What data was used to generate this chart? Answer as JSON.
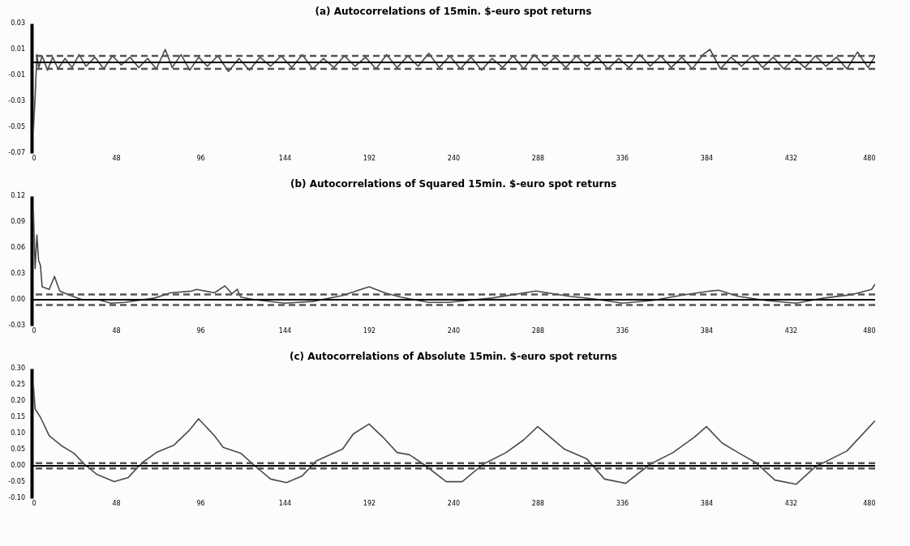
{
  "chart_data": [
    {
      "type": "line",
      "title": "(a) Autocorrelations of 15min. $-euro spot returns",
      "x": [
        1,
        2,
        3,
        4,
        6,
        9,
        12,
        15,
        19,
        23,
        27,
        31,
        36,
        41,
        46,
        51,
        56,
        61,
        66,
        71,
        76,
        80,
        85,
        90,
        95,
        100,
        106,
        112,
        118,
        124,
        130,
        136,
        142,
        148,
        154,
        160,
        166,
        172,
        178,
        184,
        190,
        196,
        202,
        208,
        214,
        220,
        226,
        232,
        238,
        244,
        250,
        256,
        262,
        268,
        274,
        280,
        286,
        292,
        298,
        304,
        310,
        316,
        322,
        328,
        334,
        340,
        346,
        352,
        358,
        364,
        370,
        376,
        382,
        386,
        392,
        398,
        404,
        410,
        416,
        422,
        428,
        434,
        440,
        446,
        452,
        458,
        464,
        470,
        476,
        480
      ],
      "series": [
        {
          "color": "#4a4a4a",
          "values": [
            -0.053,
            -0.026,
            0.006,
            -0.004,
            0.005,
            -0.006,
            0.004,
            -0.005,
            0.003,
            -0.004,
            0.006,
            -0.003,
            0.004,
            -0.005,
            0.005,
            -0.002,
            0.004,
            -0.004,
            0.003,
            -0.005,
            0.01,
            -0.004,
            0.006,
            -0.006,
            0.004,
            -0.003,
            0.005,
            -0.007,
            0.003,
            -0.006,
            0.004,
            -0.003,
            0.005,
            -0.004,
            0.006,
            -0.005,
            0.003,
            -0.004,
            0.005,
            -0.003,
            0.004,
            -0.005,
            0.006,
            -0.004,
            0.005,
            -0.003,
            0.007,
            -0.004,
            0.005,
            -0.005,
            0.004,
            -0.006,
            0.003,
            -0.004,
            0.005,
            -0.005,
            0.006,
            -0.003,
            0.004,
            -0.004,
            0.005,
            -0.003,
            0.004,
            -0.005,
            0.003,
            -0.004,
            0.006,
            -0.003,
            0.005,
            -0.004,
            0.004,
            -0.005,
            0.006,
            0.01,
            -0.005,
            0.004,
            -0.003,
            0.005,
            -0.004,
            0.004,
            -0.005,
            0.003,
            -0.004,
            0.005,
            -0.003,
            0.004,
            -0.005,
            0.008,
            -0.004,
            0.005
          ]
        }
      ],
      "xlim": [
        0,
        480
      ],
      "xticks": [
        0,
        48,
        96,
        144,
        192,
        240,
        288,
        336,
        384,
        432,
        480
      ],
      "ylim": [
        -0.07,
        0.03
      ],
      "yticks": [
        {
          "value": 0.03,
          "label": "0.03"
        },
        {
          "value": 0.01,
          "label": "0.01"
        },
        {
          "value": -0.01,
          "label": "-0.01"
        },
        {
          "value": -0.03,
          "label": "-0.03"
        },
        {
          "value": -0.05,
          "label": "-0.05"
        },
        {
          "value": -0.07,
          "label": "-0.07"
        }
      ],
      "ref_lines": [
        {
          "axis": "y",
          "value": 0,
          "color": "#000000",
          "line_style": "solid"
        },
        {
          "axis": "y",
          "value": 0.005,
          "color": "#555555",
          "line_style": "dashed"
        },
        {
          "axis": "y",
          "value": -0.005,
          "color": "#555555",
          "line_style": "dashed"
        }
      ]
    },
    {
      "type": "line",
      "title": "(b) Autocorrelations of Squared 15min. $-euro spot returns",
      "x": [
        1,
        2,
        3,
        4,
        5,
        6,
        10,
        13,
        16,
        22,
        29,
        38,
        45,
        53,
        70,
        79,
        91,
        94,
        104,
        110,
        114,
        117,
        119,
        127,
        144,
        160,
        177,
        192,
        201,
        210,
        226,
        237,
        262,
        287,
        306,
        320,
        336,
        353,
        369,
        386,
        391,
        402,
        418,
        435,
        451,
        467,
        478,
        480
      ],
      "series": [
        {
          "color": "#4a4a4a",
          "values": [
            0.103,
            0.036,
            0.075,
            0.045,
            0.04,
            0.015,
            0.012,
            0.027,
            0.01,
            0.005,
            0,
            0,
            -0.004,
            -0.003,
            0.002,
            0.008,
            0.01,
            0.012,
            0.008,
            0.016,
            0.007,
            0.012,
            0.003,
            0,
            -0.004,
            -0.002,
            0.005,
            0.015,
            0.008,
            0.003,
            -0.003,
            -0.003,
            0.002,
            0.01,
            0.004,
            0.001,
            -0.004,
            -0.001,
            0.005,
            0.01,
            0.011,
            0.004,
            -0.001,
            -0.004,
            0.002,
            0.006,
            0.012,
            0.018
          ]
        }
      ],
      "xlim": [
        0,
        480
      ],
      "xticks": [
        0,
        48,
        96,
        144,
        192,
        240,
        288,
        336,
        384,
        432,
        480
      ],
      "ylim": [
        -0.03,
        0.12
      ],
      "yticks": [
        {
          "value": 0.12,
          "label": "0.12"
        },
        {
          "value": 0.09,
          "label": "0.09"
        },
        {
          "value": 0.06,
          "label": "0.06"
        },
        {
          "value": 0.03,
          "label": "0.03"
        },
        {
          "value": 0,
          "label": "0.00"
        },
        {
          "value": -0.03,
          "label": "-0.03"
        }
      ],
      "ref_lines": [
        {
          "axis": "y",
          "value": 0,
          "color": "#000000",
          "line_style": "solid"
        },
        {
          "axis": "y",
          "value": 0.006,
          "color": "#555555",
          "line_style": "dashed"
        },
        {
          "axis": "y",
          "value": -0.006,
          "color": "#555555",
          "line_style": "dashed"
        }
      ]
    },
    {
      "type": "line",
      "title": "(c) Autocorrelations of Absolute 15min. $-euro spot returns",
      "x": [
        1,
        2,
        5,
        10,
        17,
        24,
        30,
        37,
        47,
        55,
        63,
        71,
        81,
        90,
        95,
        104,
        109,
        119,
        127,
        136,
        145,
        154,
        162,
        177,
        183,
        192,
        200,
        208,
        215,
        223,
        236,
        245,
        257,
        270,
        280,
        288,
        303,
        316,
        326,
        338,
        352,
        365,
        377,
        384,
        393,
        402,
        412,
        423,
        435,
        446,
        464,
        480
      ],
      "series": [
        {
          "color": "#4a4a4a",
          "values": [
            0.25,
            0.175,
            0.15,
            0.093,
            0.062,
            0.039,
            0.005,
            -0.026,
            -0.049,
            -0.036,
            0.01,
            0.041,
            0.064,
            0.111,
            0.145,
            0.093,
            0.057,
            0.039,
            0,
            -0.041,
            -0.052,
            -0.031,
            0.015,
            0.052,
            0.098,
            0.129,
            0.088,
            0.041,
            0.034,
            0.005,
            -0.049,
            -0.049,
            0.005,
            0.041,
            0.08,
            0.121,
            0.052,
            0.021,
            -0.041,
            -0.054,
            0.005,
            0.041,
            0.088,
            0.121,
            0.07,
            0.041,
            0.01,
            -0.044,
            -0.057,
            -0.003,
            0.046,
            0.139
          ]
        }
      ],
      "xlim": [
        0,
        480
      ],
      "xticks": [
        0,
        48,
        96,
        144,
        192,
        240,
        288,
        336,
        384,
        432,
        480
      ],
      "ylim": [
        -0.1,
        0.3
      ],
      "yticks": [
        {
          "value": 0.3,
          "label": "0.30"
        },
        {
          "value": 0.25,
          "label": "0.25"
        },
        {
          "value": 0.2,
          "label": "0.20"
        },
        {
          "value": 0.15,
          "label": "0.15"
        },
        {
          "value": 0.1,
          "label": "0.10"
        },
        {
          "value": 0.05,
          "label": "0.05"
        },
        {
          "value": 0,
          "label": "0.00"
        },
        {
          "value": -0.05,
          "label": "-0.05"
        },
        {
          "value": -0.1,
          "label": "-0.10"
        }
      ],
      "ref_lines": [
        {
          "axis": "y",
          "value": 0,
          "color": "#000000",
          "line_style": "solid"
        },
        {
          "axis": "y",
          "value": 0.008,
          "color": "#555555",
          "line_style": "dashed"
        },
        {
          "axis": "y",
          "value": -0.008,
          "color": "#555555",
          "line_style": "dashed"
        }
      ]
    }
  ]
}
